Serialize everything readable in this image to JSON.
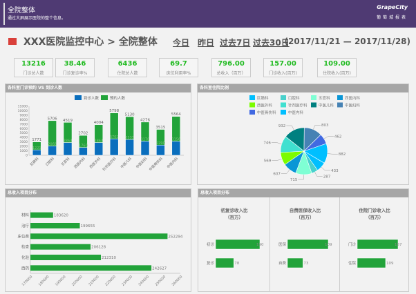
{
  "header": {
    "title": "全院整体",
    "subtitle": "通过大屏展示医院的整个信息。",
    "logo": "GrapeCity",
    "logo_sub": "葡萄城报表"
  },
  "titlebar": {
    "title": "XXX医院监控中心 > 全院整体",
    "nav": [
      "今日",
      "昨日",
      "过去7日",
      "过去30日"
    ],
    "range": "(2017/11/21 — 2017/11/28)"
  },
  "kpis": [
    {
      "value": "13216",
      "label": "门诊总人数"
    },
    {
      "value": "38.46",
      "label": "门诊复诊率%"
    },
    {
      "value": "6436",
      "label": "住院总人数"
    },
    {
      "value": "69.7",
      "label": "床位利用率%"
    },
    {
      "value": "796.00",
      "label": "总收入（百万）"
    },
    {
      "value": "157.00",
      "label": "门诊收入(百万)"
    },
    {
      "value": "109.00",
      "label": "住院收入(百万)"
    }
  ],
  "colors": {
    "blue": "#0a6ebd",
    "green": "#22a33a",
    "header": "#4f3a73",
    "kpi": "#22bb22"
  },
  "panels": {
    "p1": "各科室门诊预约 VS 到诊人数",
    "p2": "各科室住院比例",
    "p3": "总收入项目分布",
    "p4": "总收入项目分布"
  },
  "chart_data": [
    {
      "type": "bar",
      "stacked": true,
      "title": "各科室门诊预约 VS 到诊人数",
      "categories": [
        "肛肠科",
        "口腔科",
        "五官科",
        "西医内科",
        "西医外科",
        "针剂医疗科",
        "中医儿科",
        "中医妇科",
        "中医骨伤科",
        "中医内科"
      ],
      "series": [
        {
          "name": "到诊人数",
          "values": [
            1221,
            2068,
            2864,
            1760,
            2864,
            3702,
            3533,
            3178,
            2290,
            3156
          ]
        },
        {
          "name": "预约人数",
          "values": [
            1771,
            5706,
            4519,
            2702,
            4004,
            5798,
            5130,
            4276,
            3515,
            5564
          ]
        }
      ],
      "ylim": [
        0,
        11000
      ],
      "yticks": [
        0,
        1000,
        2000,
        3000,
        4000,
        5000,
        6000,
        7000,
        8000,
        9000,
        10000,
        11000
      ],
      "legend": "top"
    },
    {
      "type": "pie",
      "title": "各科室住院比例",
      "labels": [
        "肛肠科",
        "口腔科",
        "五官科",
        "西医内科",
        "西医外科",
        "针剂医疗科",
        "中医儿科",
        "中医妇科",
        "中医骨伤科",
        "中医内科"
      ],
      "values": [
        433,
        287,
        715,
        607,
        569,
        746,
        932,
        803,
        462,
        882
      ],
      "colors": [
        "#00bfff",
        "#48d1cc",
        "#7fffd4",
        "#0a96d6",
        "#7cfc00",
        "#40e0d0",
        "#008080",
        "#4682b4",
        "#4169e1",
        "#00bfff"
      ],
      "legend": "top"
    },
    {
      "type": "bar",
      "orientation": "horizontal",
      "title": "总收入项目分布",
      "categories": [
        "材料",
        "治疗",
        "床位费",
        "检查",
        "化验",
        "西药"
      ],
      "values": [
        183620,
        199655,
        252294,
        206128,
        212310,
        242627
      ],
      "xlim": [
        170000,
        260000
      ],
      "xticks": [
        170000,
        180000,
        190000,
        200000,
        210000,
        220000,
        230000,
        240000,
        250000,
        260000
      ]
    },
    {
      "type": "bar",
      "orientation": "horizontal",
      "title": "初复诊收入比",
      "subtitle": "（百万）",
      "categories": [
        "初诊",
        "复诊"
      ],
      "values": [
        190,
        78
      ],
      "xlim": [
        0,
        200
      ]
    },
    {
      "type": "bar",
      "orientation": "horizontal",
      "title": "自费医保收入比",
      "subtitle": "（百万）",
      "categories": [
        "医保",
        "自费"
      ],
      "values": [
        109,
        73
      ],
      "xlim": [
        51,
        115
      ]
    },
    {
      "type": "bar",
      "orientation": "horizontal",
      "title": "住院门诊收入比",
      "subtitle": "（百万）",
      "categories": [
        "门诊",
        "住院"
      ],
      "values": [
        157,
        109
      ],
      "xlim": [
        0,
        180
      ]
    }
  ]
}
